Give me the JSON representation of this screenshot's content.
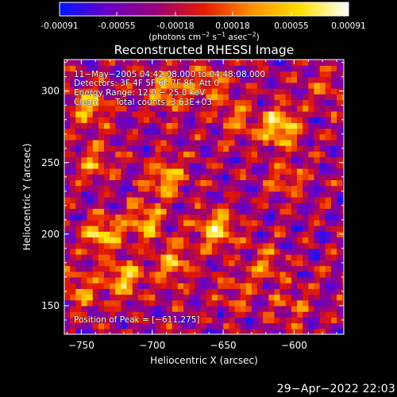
{
  "chart_data": {
    "type": "heatmap",
    "title": "Reconstructed RHESSI Image",
    "xlabel": "Heliocentric X (arcsec)",
    "ylabel": "Heliocentric Y (arcsec)",
    "xlim": [
      -762,
      -565
    ],
    "ylim": [
      130,
      322
    ],
    "x_ticks": [
      -750,
      -700,
      -650,
      -600
    ],
    "x_tick_labels": [
      "−750",
      "−700",
      "−650",
      "−600"
    ],
    "y_ticks": [
      150,
      200,
      250,
      300
    ],
    "y_tick_labels": [
      "150",
      "200",
      "250",
      "300"
    ],
    "colorbar": {
      "range": [
        -0.00091,
        0.00091
      ],
      "ticks": [
        -0.00091,
        -0.00055,
        -0.00018,
        0.00018,
        0.00055,
        0.00091
      ],
      "tick_labels": [
        "-0.00091",
        "-0.00055",
        "-0.00018",
        "0.00018",
        "0.00055",
        "0.00091"
      ],
      "label": "(photons cm⁻² s⁻¹ asec⁻²)",
      "label_main": "(photons cm",
      "label_exp1": "−2",
      "label_mid1": " s",
      "label_exp2": "−1",
      "label_mid2": " asec",
      "label_exp3": "−2",
      "label_end": ")",
      "colormap": [
        "#0018ff",
        "#6a00c8",
        "#9a0078",
        "#e61a00",
        "#ff9000",
        "#ffe000",
        "#ffffff"
      ]
    },
    "annotations": {
      "time_range": "11−May−2005 04:42:08.000 to 04:48:08.000",
      "detectors": "Detectors: 3F 4F 5F 6F 7F 8F, Att 0",
      "energy": "Energy Range: 12.0 − 25.0 keV",
      "method": "Clean",
      "total_counts": "Total counts: 3.63E+03",
      "peak": "Position of Peak = [−611,275]"
    },
    "peak": {
      "x": -611,
      "y": 275
    },
    "sources": [
      {
        "x": -611,
        "y": 275,
        "amp": 1.0
      },
      {
        "x": -655,
        "y": 203,
        "amp": 0.9
      },
      {
        "x": -745,
        "y": 290,
        "amp": 0.75
      },
      {
        "x": -735,
        "y": 200,
        "amp": 0.85
      },
      {
        "x": -720,
        "y": 170,
        "amp": 0.8
      },
      {
        "x": -690,
        "y": 240,
        "amp": 0.75
      },
      {
        "x": -690,
        "y": 300,
        "amp": 0.7
      },
      {
        "x": -660,
        "y": 305,
        "amp": 0.55
      },
      {
        "x": -640,
        "y": 280,
        "amp": 0.5
      },
      {
        "x": -705,
        "y": 210,
        "amp": 0.75
      },
      {
        "x": -685,
        "y": 180,
        "amp": 0.7
      },
      {
        "x": -750,
        "y": 160,
        "amp": 0.6
      },
      {
        "x": -740,
        "y": 250,
        "amp": 0.55
      },
      {
        "x": -605,
        "y": 240,
        "amp": 0.45
      },
      {
        "x": -620,
        "y": 180,
        "amp": 0.45
      },
      {
        "x": -600,
        "y": 150,
        "amp": 0.4
      },
      {
        "x": -580,
        "y": 300,
        "amp": 0.35
      },
      {
        "x": -640,
        "y": 160,
        "amp": 0.35
      }
    ]
  },
  "footer": {
    "timestamp": "29−Apr−2022 22:03"
  }
}
